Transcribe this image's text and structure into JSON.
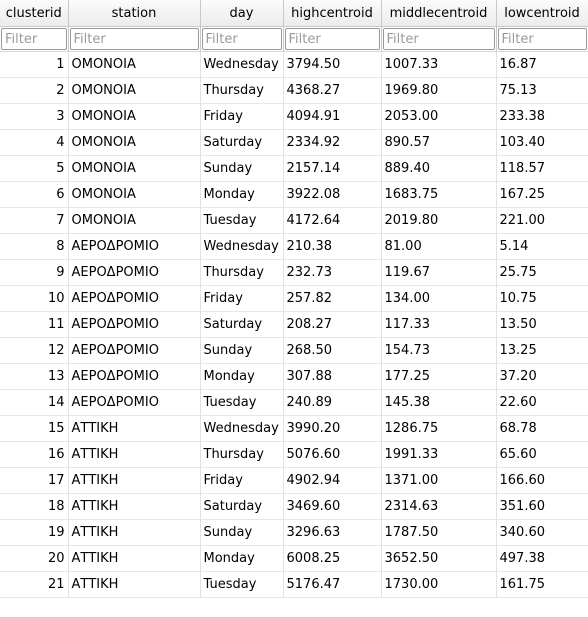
{
  "columns": [
    "clusterid",
    "station",
    "day",
    "highcentroid",
    "middlecentroid",
    "lowcentroid"
  ],
  "filter_placeholder": "Filter",
  "rows": [
    [
      "1",
      "ΟΜΟΝΟΙΑ",
      "Wednesday",
      "3794.50",
      "1007.33",
      "16.87"
    ],
    [
      "2",
      "ΟΜΟΝΟΙΑ",
      "Thursday",
      "4368.27",
      "1969.80",
      "75.13"
    ],
    [
      "3",
      "ΟΜΟΝΟΙΑ",
      "Friday",
      "4094.91",
      "2053.00",
      "233.38"
    ],
    [
      "4",
      "ΟΜΟΝΟΙΑ",
      "Saturday",
      "2334.92",
      "890.57",
      "103.40"
    ],
    [
      "5",
      "ΟΜΟΝΟΙΑ",
      "Sunday",
      "2157.14",
      "889.40",
      "118.57"
    ],
    [
      "6",
      "ΟΜΟΝΟΙΑ",
      "Monday",
      "3922.08",
      "1683.75",
      "167.25"
    ],
    [
      "7",
      "ΟΜΟΝΟΙΑ",
      "Tuesday",
      "4172.64",
      "2019.80",
      "221.00"
    ],
    [
      "8",
      "ΑΕΡΟΔΡΟΜΙΟ",
      "Wednesday",
      "210.38",
      "81.00",
      "5.14"
    ],
    [
      "9",
      "ΑΕΡΟΔΡΟΜΙΟ",
      "Thursday",
      "232.73",
      "119.67",
      "25.75"
    ],
    [
      "10",
      "ΑΕΡΟΔΡΟΜΙΟ",
      "Friday",
      "257.82",
      "134.00",
      "10.75"
    ],
    [
      "11",
      "ΑΕΡΟΔΡΟΜΙΟ",
      "Saturday",
      "208.27",
      "117.33",
      "13.50"
    ],
    [
      "12",
      "ΑΕΡΟΔΡΟΜΙΟ",
      "Sunday",
      "268.50",
      "154.73",
      "13.25"
    ],
    [
      "13",
      "ΑΕΡΟΔΡΟΜΙΟ",
      "Monday",
      "307.88",
      "177.25",
      "37.20"
    ],
    [
      "14",
      "ΑΕΡΟΔΡΟΜΙΟ",
      "Tuesday",
      "240.89",
      "145.38",
      "22.60"
    ],
    [
      "15",
      "ΑΤΤΙΚΗ",
      "Wednesday",
      "3990.20",
      "1286.75",
      "68.78"
    ],
    [
      "16",
      "ΑΤΤΙΚΗ",
      "Thursday",
      "5076.60",
      "1991.33",
      "65.60"
    ],
    [
      "17",
      "ΑΤΤΙΚΗ",
      "Friday",
      "4902.94",
      "1371.00",
      "166.60"
    ],
    [
      "18",
      "ΑΤΤΙΚΗ",
      "Saturday",
      "3469.60",
      "2314.63",
      "351.60"
    ],
    [
      "19",
      "ΑΤΤΙΚΗ",
      "Sunday",
      "3296.63",
      "1787.50",
      "340.60"
    ],
    [
      "20",
      "ΑΤΤΙΚΗ",
      "Monday",
      "6008.25",
      "3652.50",
      "497.38"
    ],
    [
      "21",
      "ΑΤΤΙΚΗ",
      "Tuesday",
      "5176.47",
      "1730.00",
      "161.75"
    ]
  ]
}
